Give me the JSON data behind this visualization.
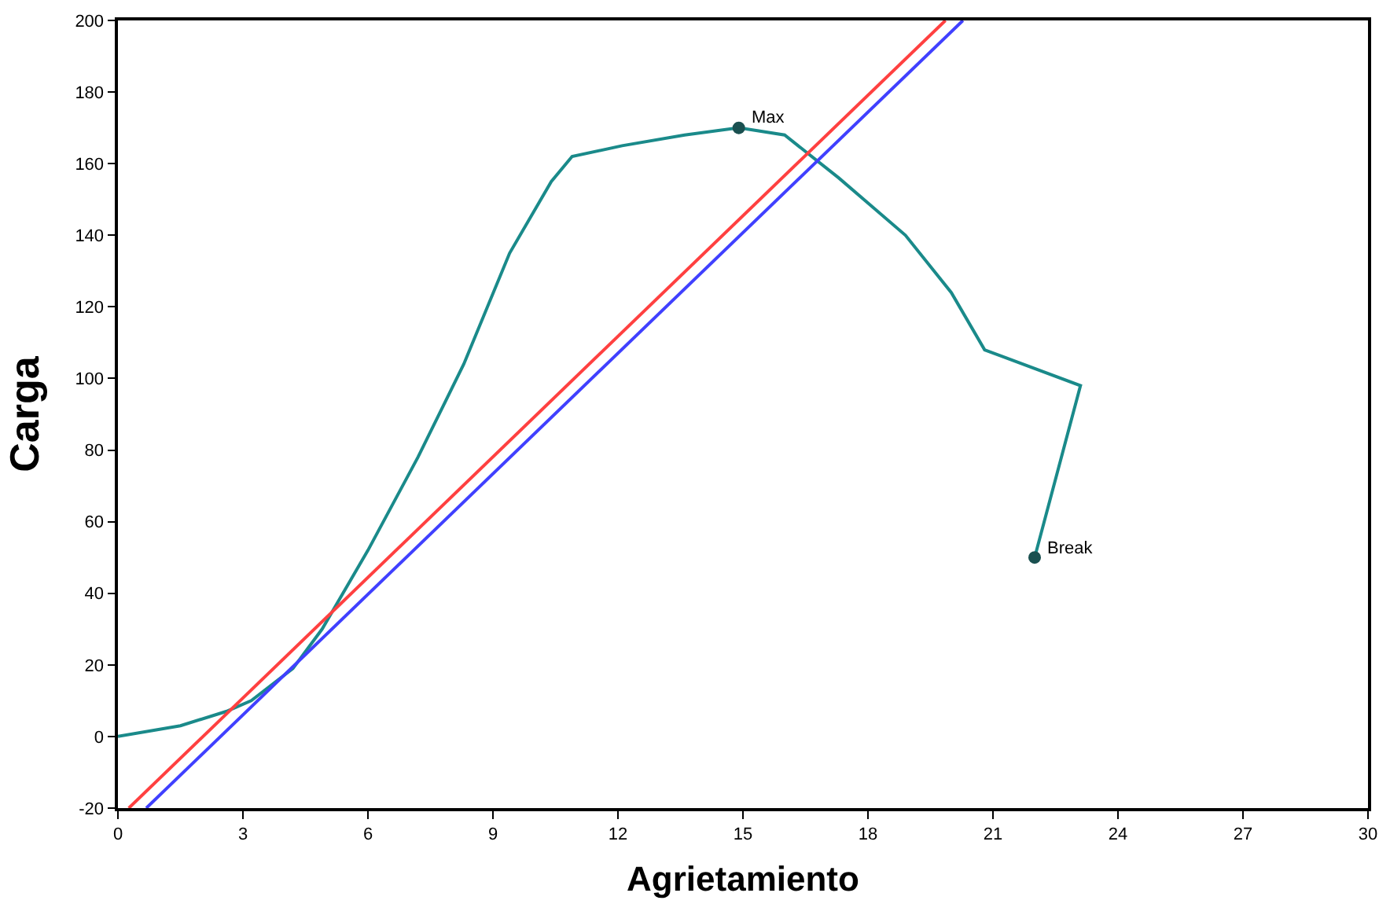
{
  "chart_data": {
    "type": "line",
    "xlabel": "Agrietamiento",
    "ylabel": "Carga",
    "xlim": [
      0,
      30
    ],
    "xticks": [
      0,
      3,
      6,
      9,
      12,
      15,
      18,
      21,
      24,
      27,
      30
    ],
    "ylim": [
      -20,
      200
    ],
    "yticks": [
      -20,
      0,
      20,
      40,
      60,
      80,
      100,
      120,
      140,
      160,
      180,
      200
    ],
    "series": [
      {
        "color": "#1a8a8a",
        "x": [
          0,
          1.5,
          2.6,
          3.2,
          4.2,
          4.9,
          6.0,
          7.2,
          8.3,
          9.4,
          10.4,
          10.9,
          12.1,
          13.6,
          14.9,
          16.0,
          17.3,
          18.9,
          20.0,
          20.8,
          23.1,
          22.0
        ],
        "values": [
          0,
          3,
          7,
          10,
          19,
          30,
          52,
          78,
          104,
          135,
          155,
          162,
          165,
          168,
          170,
          168,
          156,
          140,
          124,
          108,
          98,
          50
        ]
      },
      {
        "color": "#ff4040",
        "x": [
          0.26,
          19.86
        ],
        "values": [
          -20,
          200
        ]
      },
      {
        "color": "#4040ff",
        "x": [
          0.68,
          20.28
        ],
        "values": [
          -20,
          200
        ]
      },
      {
        "type": "scatter",
        "marker": "circle",
        "color": "#1a5050",
        "x": [
          14.9,
          22.0
        ],
        "values": [
          170,
          50
        ]
      }
    ],
    "annotations": [
      {
        "text": "Max",
        "x": 14.9,
        "y": 170
      },
      {
        "text": "Break",
        "x": 22.0,
        "y": 50
      }
    ]
  }
}
